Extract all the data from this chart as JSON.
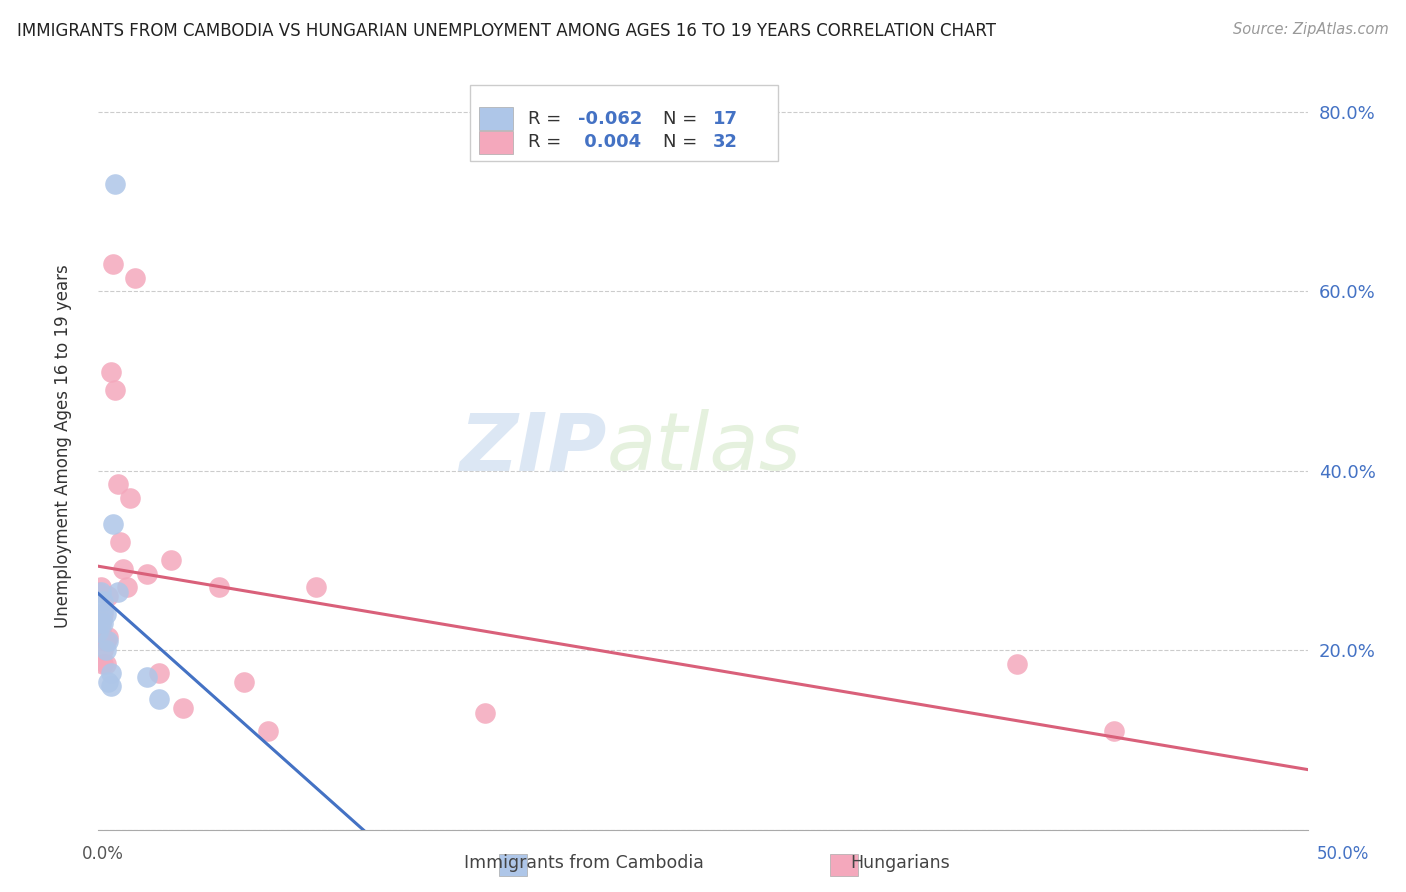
{
  "title": "IMMIGRANTS FROM CAMBODIA VS HUNGARIAN UNEMPLOYMENT AMONG AGES 16 TO 19 YEARS CORRELATION CHART",
  "source": "Source: ZipAtlas.com",
  "ylabel": "Unemployment Among Ages 16 to 19 years",
  "xmin": 0.0,
  "xmax": 0.5,
  "ymin": 0.0,
  "ymax": 0.85,
  "yticks": [
    0.0,
    0.2,
    0.4,
    0.6,
    0.8
  ],
  "ytick_labels": [
    "",
    "20.0%",
    "40.0%",
    "60.0%",
    "80.0%"
  ],
  "blue_color": "#aec6e8",
  "pink_color": "#f4a8bc",
  "line_blue": "#4472c4",
  "line_pink": "#d9607a",
  "r_value_color": "#4472c4",
  "watermark_zip": "ZIP",
  "watermark_atlas": "atlas",
  "cambodia_x": [
    0.0,
    0.001,
    0.001,
    0.002,
    0.002,
    0.002,
    0.003,
    0.003,
    0.004,
    0.004,
    0.005,
    0.005,
    0.006,
    0.007,
    0.008,
    0.02,
    0.025
  ],
  "cambodia_y": [
    0.22,
    0.265,
    0.23,
    0.245,
    0.23,
    0.255,
    0.24,
    0.2,
    0.21,
    0.165,
    0.175,
    0.16,
    0.34,
    0.72,
    0.265,
    0.17,
    0.145
  ],
  "hungarian_x": [
    0.0,
    0.0,
    0.001,
    0.001,
    0.001,
    0.002,
    0.002,
    0.002,
    0.003,
    0.003,
    0.004,
    0.004,
    0.005,
    0.006,
    0.007,
    0.008,
    0.009,
    0.01,
    0.012,
    0.013,
    0.015,
    0.02,
    0.025,
    0.03,
    0.035,
    0.05,
    0.06,
    0.07,
    0.09,
    0.16,
    0.38,
    0.42
  ],
  "hungarian_y": [
    0.265,
    0.24,
    0.27,
    0.23,
    0.22,
    0.24,
    0.2,
    0.185,
    0.185,
    0.21,
    0.26,
    0.215,
    0.51,
    0.63,
    0.49,
    0.385,
    0.32,
    0.29,
    0.27,
    0.37,
    0.615,
    0.285,
    0.175,
    0.3,
    0.135,
    0.27,
    0.165,
    0.11,
    0.27,
    0.13,
    0.185,
    0.11
  ]
}
